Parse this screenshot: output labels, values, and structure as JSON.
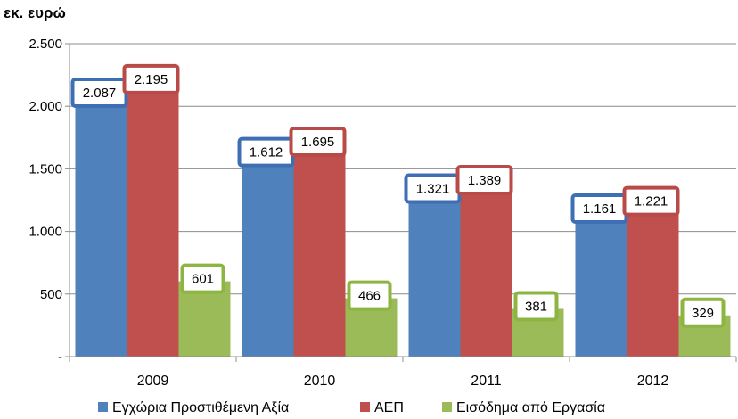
{
  "chart_data": {
    "type": "bar",
    "unit_label": "εκ. ευρώ",
    "categories": [
      "2009",
      "2010",
      "2011",
      "2012"
    ],
    "series": [
      {
        "name": "Εγχώρια Προστιθέμενη Αξία",
        "color": "#4F81BD",
        "border": "#3E6FB5",
        "values": [
          2087,
          1612,
          1321,
          1161
        ],
        "labels": [
          "2.087",
          "1.612",
          "1.321",
          "1.161"
        ]
      },
      {
        "name": "ΑΕΠ",
        "color": "#C0504D",
        "border": "#B84A47",
        "values": [
          2195,
          1695,
          1389,
          1221
        ],
        "labels": [
          "2.195",
          "1.695",
          "1.389",
          "1.221"
        ]
      },
      {
        "name": "Εισόδημα από  Εργασία",
        "color": "#9BBB59",
        "border": "#8DB542",
        "values": [
          601,
          466,
          381,
          329
        ],
        "labels": [
          "601",
          "466",
          "381",
          "329"
        ]
      }
    ],
    "ylim": [
      0,
      2500
    ],
    "yticks": [
      0,
      500,
      1000,
      1500,
      2000,
      2500
    ],
    "ytick_labels": [
      "-",
      "500",
      "1.000",
      "1.500",
      "2.000",
      "2.500"
    ],
    "grid": true,
    "legend": "bottom"
  }
}
